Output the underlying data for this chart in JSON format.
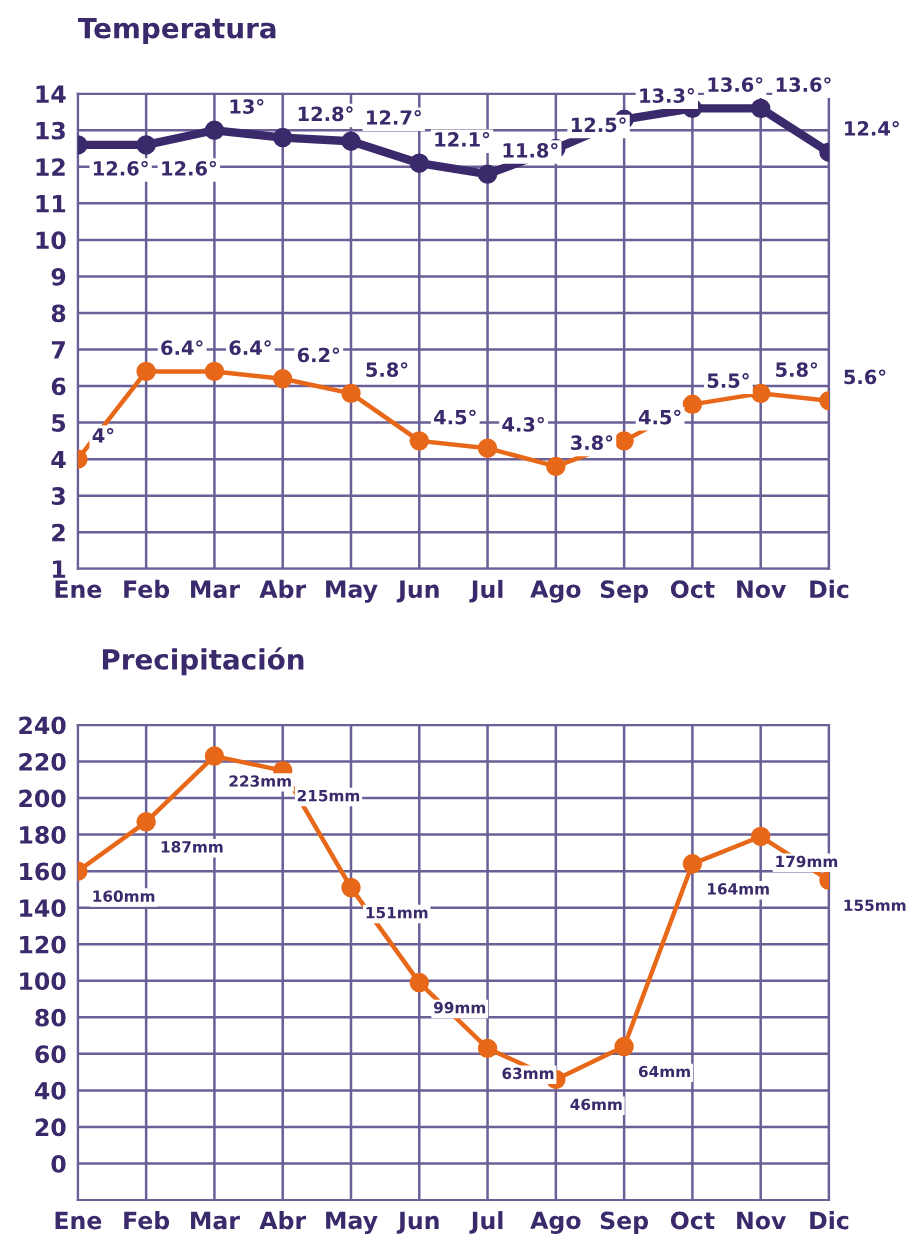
{
  "chart_data": [
    {
      "type": "line",
      "title": "Temperatura",
      "categories": [
        "Ene",
        "Feb",
        "Mar",
        "Abr",
        "May",
        "Jun",
        "Jul",
        "Ago",
        "Sep",
        "Oct",
        "Nov",
        "Dic"
      ],
      "series": [
        {
          "color": "#3b2a6b",
          "values": [
            12.6,
            12.6,
            13,
            12.8,
            12.7,
            12.1,
            11.8,
            12.5,
            13.3,
            13.6,
            13.6,
            12.4
          ],
          "value_labels": [
            "12.6°",
            "12.6°",
            "13°",
            "12.8°",
            "12.7°",
            "12.1°",
            "11.8°",
            "12.5°",
            "13.3°",
            "13.6°",
            "13.6°",
            "12.4°"
          ]
        },
        {
          "color": "#e8681a",
          "values": [
            4,
            6.4,
            6.4,
            6.2,
            5.8,
            4.5,
            4.3,
            3.8,
            4.5,
            5.5,
            5.8,
            5.6
          ],
          "value_labels": [
            "4°",
            "6.4°",
            "6.4°",
            "6.2°",
            "5.8°",
            "4.5°",
            "4.3°",
            "3.8°",
            "4.5°",
            "5.5°",
            "5.8°",
            "5.6°"
          ]
        }
      ],
      "ylim": [
        1,
        14
      ],
      "yticks": [
        1,
        2,
        3,
        4,
        5,
        6,
        7,
        8,
        9,
        10,
        11,
        12,
        13,
        14
      ],
      "grid": true,
      "marker": "circle",
      "line_style": "solid",
      "legend": false
    },
    {
      "type": "line",
      "title": "Precipitación",
      "categories": [
        "Ene",
        "Feb",
        "Mar",
        "Abr",
        "May",
        "Jun",
        "Jul",
        "Ago",
        "Sep",
        "Oct",
        "Nov",
        "Dic"
      ],
      "series": [
        {
          "color": "#e8681a",
          "values": [
            160,
            187,
            223,
            215,
            151,
            99,
            63,
            46,
            64,
            164,
            179,
            155
          ],
          "value_labels": [
            "160mm",
            "187mm",
            "223mm",
            "215mm",
            "151mm",
            "99mm",
            "63mm",
            "46mm",
            "64mm",
            "164mm",
            "179mm",
            "155mm"
          ]
        }
      ],
      "ylim": [
        -20,
        240
      ],
      "yticks": [
        0,
        20,
        40,
        60,
        80,
        100,
        120,
        140,
        160,
        180,
        200,
        220,
        240
      ],
      "grid": true,
      "marker": "circle",
      "line_style": "solid",
      "legend": false
    }
  ]
}
